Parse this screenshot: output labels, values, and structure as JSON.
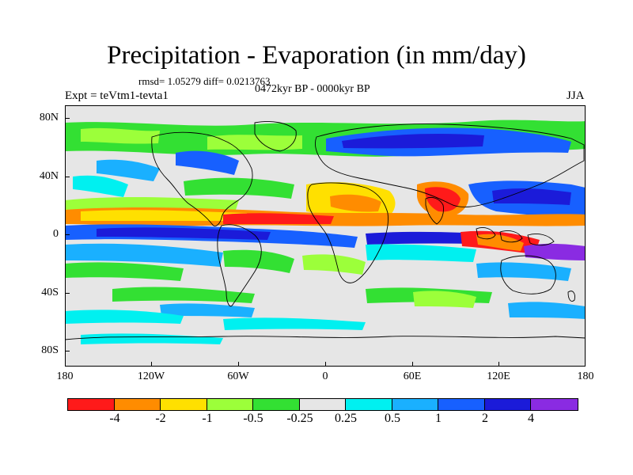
{
  "title": "Precipitation - Evaporation (in mm/day)",
  "stats_text": "rmsd= 1.05279 diff= 0.0213763",
  "subtitle": "0472kyr BP - 0000kyr BP",
  "experiment_label": "Expt = teVtm1-tevta1",
  "season_label": "JJA",
  "lat_labels": [
    "80N",
    "40N",
    "0",
    "40S",
    "80S"
  ],
  "lon_labels": [
    "180",
    "120W",
    "60W",
    "0",
    "60E",
    "120E",
    "180"
  ],
  "colorbar": {
    "colors": [
      "#ff1a1a",
      "#ff8c00",
      "#ffe000",
      "#9cff3a",
      "#33e033",
      "#e6e6e6",
      "#00f0f0",
      "#1ab0ff",
      "#1760ff",
      "#1b1bd9",
      "#8a2be2"
    ],
    "labels": [
      "-4",
      "-2",
      "-1",
      "-0.5",
      "-0.25",
      "0.25",
      "0.5",
      "1",
      "2",
      "4"
    ]
  },
  "colors": {
    "ocean_neutral": "#e6e6e6",
    "coastline": "#000000"
  }
}
